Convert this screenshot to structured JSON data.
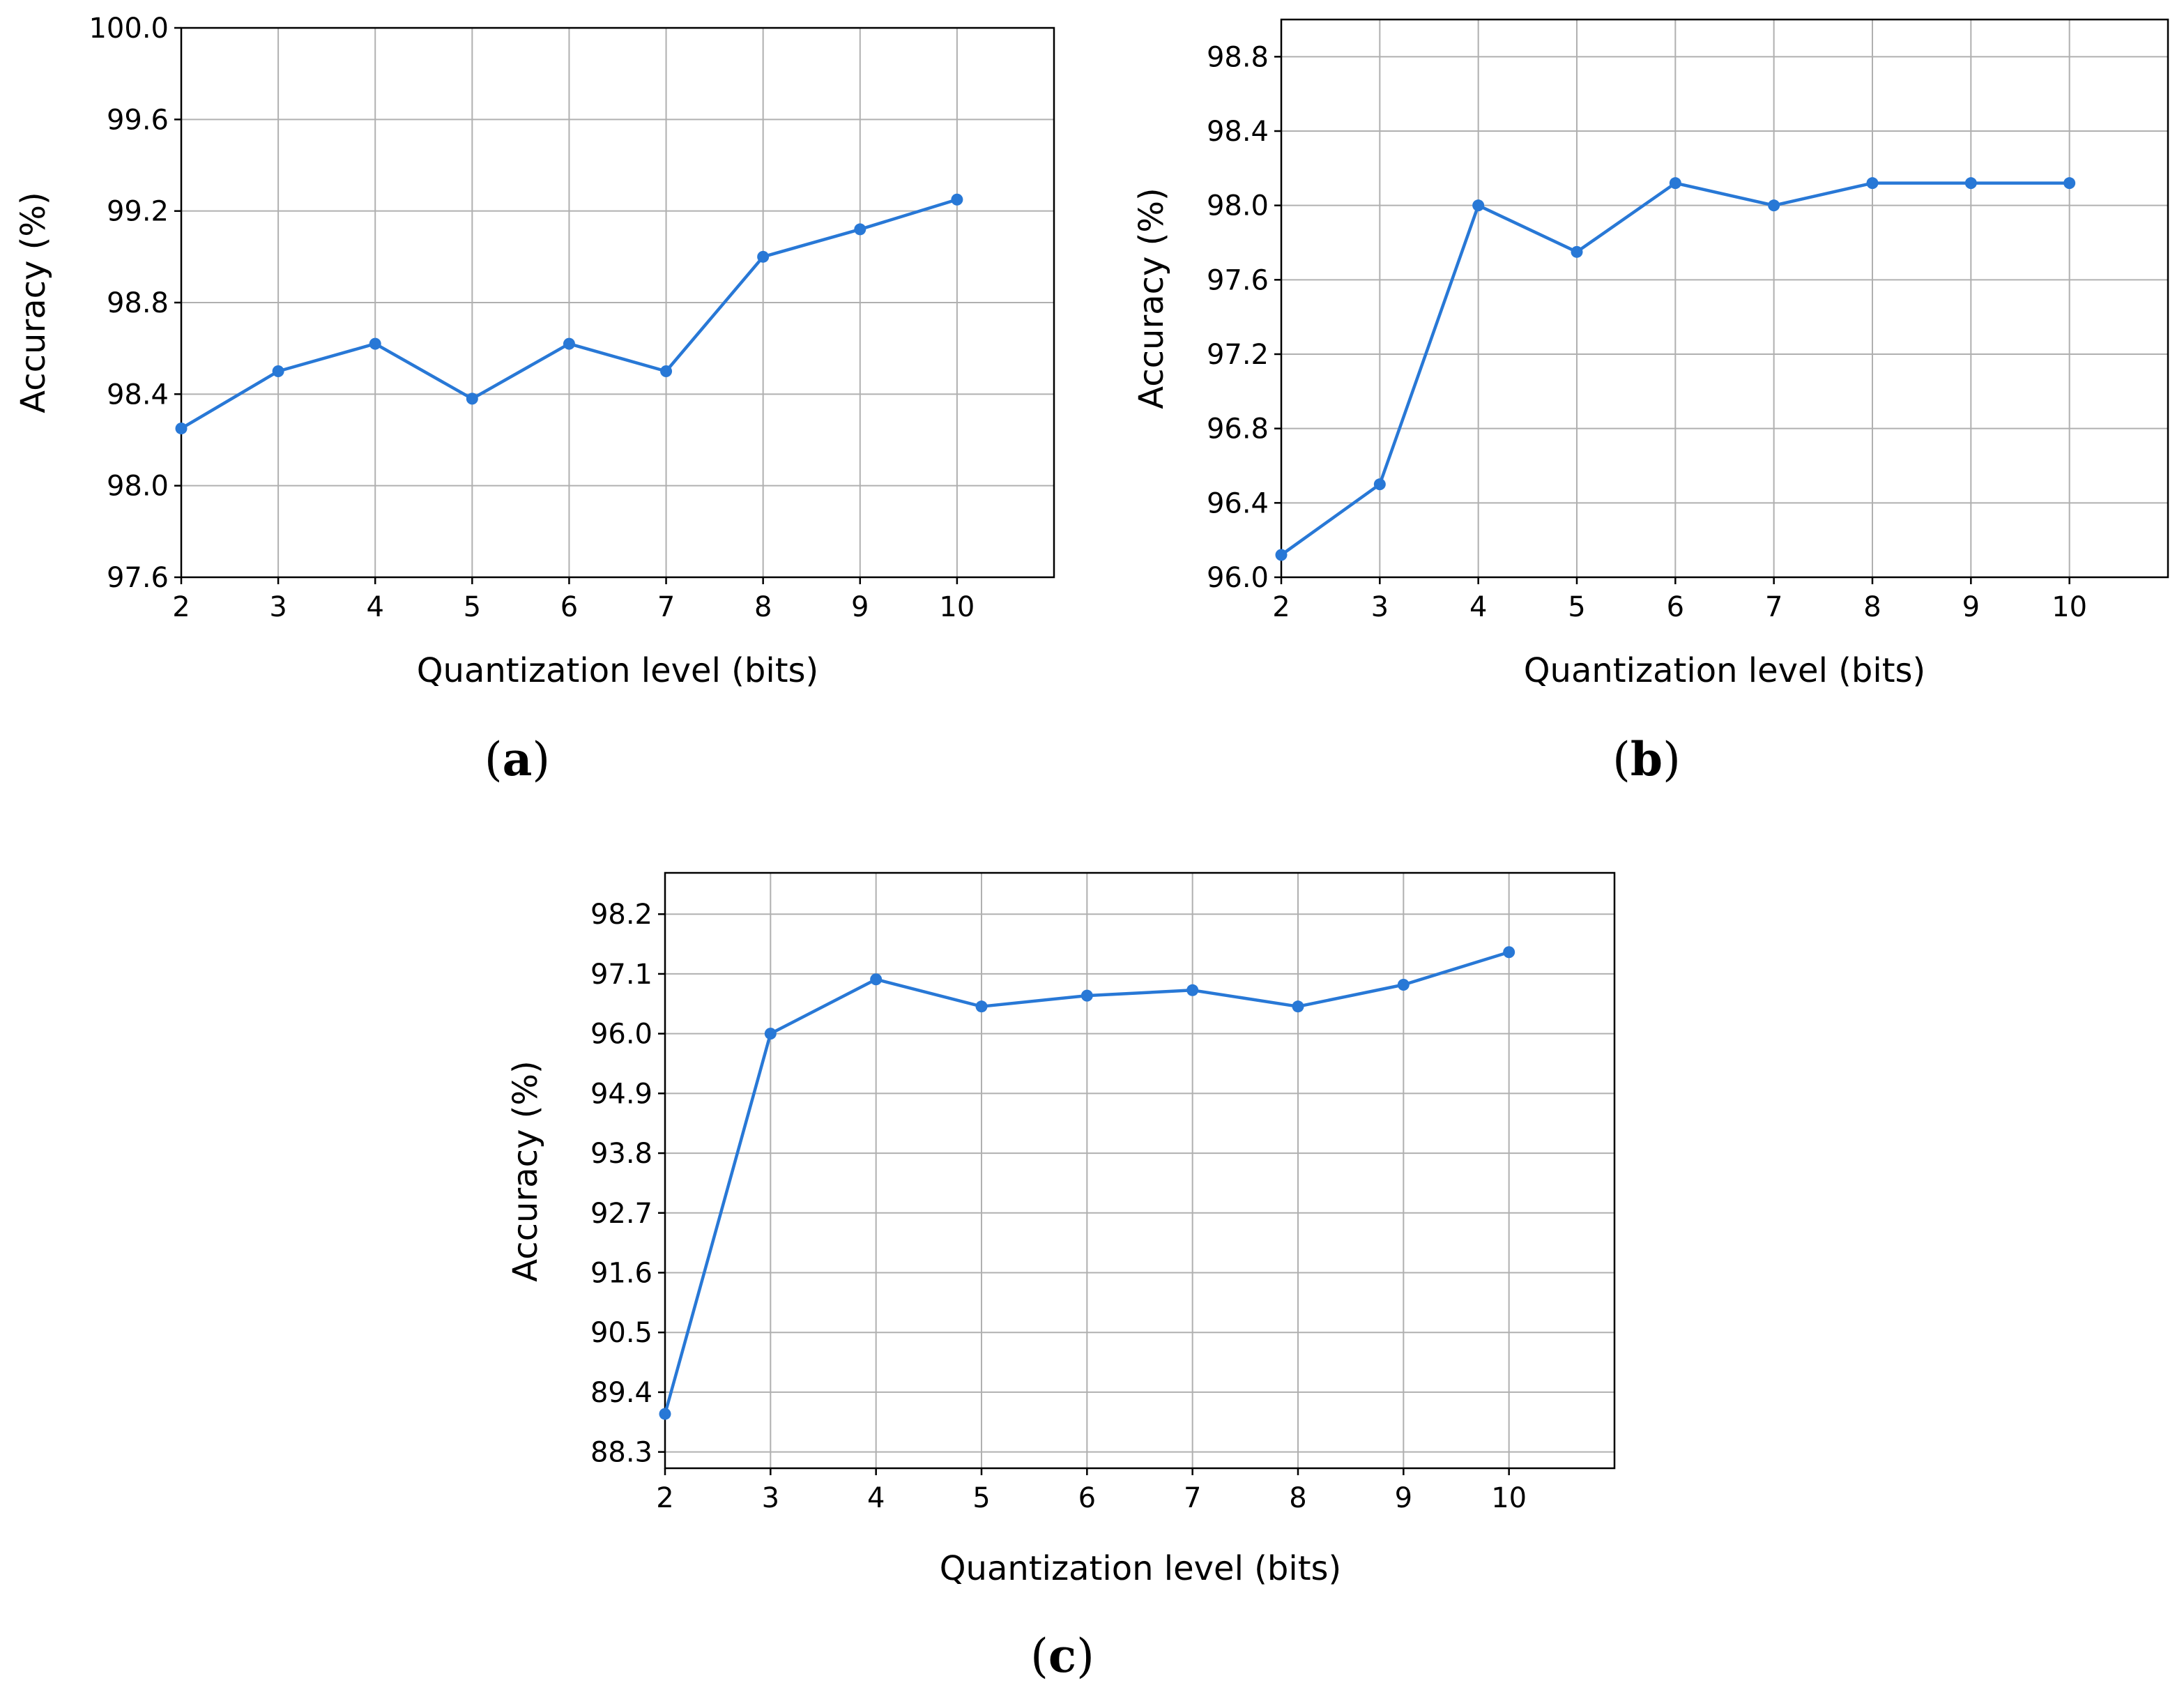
{
  "colors": {
    "series": "#2878d6",
    "grid": "#b0b0b0"
  },
  "chart_data": [
    {
      "type": "line",
      "caption_open": "(",
      "caption_letter": "a",
      "caption_close": ")",
      "xlabel": "Quantization level (bits)",
      "ylabel": "Accuracy (%)",
      "xlim": [
        2,
        11
      ],
      "ylim": [
        97.6,
        100.0
      ],
      "xticks": [
        2,
        3,
        4,
        5,
        6,
        7,
        8,
        9,
        10
      ],
      "yticks": [
        "97.6",
        "98.0",
        "98.4",
        "98.8",
        "99.2",
        "99.6",
        "100.0"
      ],
      "grid": true,
      "x": [
        2,
        3,
        4,
        5,
        6,
        7,
        8,
        9,
        10
      ],
      "y": [
        98.25,
        98.5,
        98.62,
        98.38,
        98.62,
        98.5,
        99.0,
        99.12,
        99.25
      ]
    },
    {
      "type": "line",
      "caption_open": "(",
      "caption_letter": "b",
      "caption_close": ")",
      "xlabel": "Quantization level (bits)",
      "ylabel": "Accuracy (%)",
      "xlim": [
        2,
        11
      ],
      "ylim": [
        96.0,
        99.0
      ],
      "xticks": [
        2,
        3,
        4,
        5,
        6,
        7,
        8,
        9,
        10
      ],
      "yticks": [
        "96.0",
        "96.4",
        "96.8",
        "97.2",
        "97.6",
        "98.0",
        "98.4",
        "98.8"
      ],
      "grid": true,
      "x": [
        2,
        3,
        4,
        5,
        6,
        7,
        8,
        9,
        10
      ],
      "y": [
        96.12,
        96.5,
        98.0,
        97.75,
        98.12,
        98.0,
        98.12,
        98.12,
        98.12
      ]
    },
    {
      "type": "line",
      "caption_open": "(",
      "caption_letter": "c",
      "caption_close": ")",
      "xlabel": "Quantization level (bits)",
      "ylabel": "Accuracy (%)",
      "xlim": [
        2,
        11
      ],
      "ylim": [
        88.0,
        98.96
      ],
      "xticks": [
        2,
        3,
        4,
        5,
        6,
        7,
        8,
        9,
        10
      ],
      "yticks": [
        "88.3",
        "89.4",
        "90.5",
        "91.6",
        "92.7",
        "93.8",
        "94.9",
        "96.0",
        "97.1",
        "98.2"
      ],
      "grid": true,
      "x": [
        2,
        3,
        4,
        5,
        6,
        7,
        8,
        9,
        10
      ],
      "y": [
        89.0,
        96.0,
        97.0,
        96.5,
        96.7,
        96.8,
        96.5,
        96.9,
        97.5
      ]
    }
  ]
}
